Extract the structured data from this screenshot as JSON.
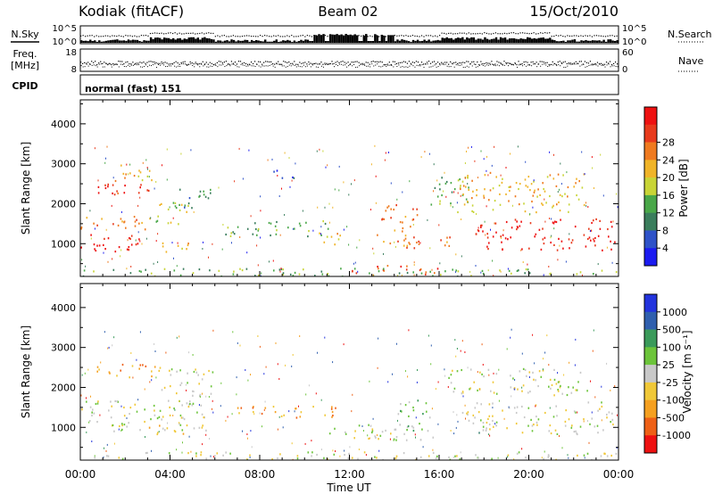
{
  "header": {
    "radar": "Kodiak (fitACF)",
    "beam": "Beam 02",
    "date": "15/Oct/2010"
  },
  "noise_panel": {
    "left_label": "N.Sky",
    "right_label": "N.Search",
    "left_ticks": [
      "10^5",
      "10^0"
    ],
    "right_ticks": [
      "10^5",
      "10^0"
    ]
  },
  "freq_panel": {
    "left_label_1": "Freq.",
    "left_label_2": "[MHz]",
    "right_label": "Nave",
    "left_ticks": [
      "18",
      "8"
    ],
    "right_ticks": [
      "60",
      "0"
    ]
  },
  "cpid_panel": {
    "label": "CPID",
    "value": "normal (fast) 151"
  },
  "chart_data": [
    {
      "type": "heatmap",
      "name": "power",
      "ylabel": "Slant Range [km]",
      "ylim": [
        180,
        4600
      ],
      "yticks": [
        "1000",
        "2000",
        "3000",
        "4000"
      ],
      "xlim": [
        0,
        24
      ],
      "colorbar_label": "Power [dB]",
      "colorbar_ticks": [
        "4",
        "8",
        "12",
        "16",
        "20",
        "24",
        "28"
      ],
      "colors": [
        "#1b1bf0",
        "#2e52c8",
        "#3a7d5c",
        "#49a748",
        "#c8d436",
        "#f0b428",
        "#ef7a1f",
        "#e83a1c",
        "#ee1111"
      ],
      "regions": [
        {
          "t0": 0.0,
          "t1": 2.6,
          "r0": 780,
          "r1": 1300,
          "level": 8
        },
        {
          "t0": 0.0,
          "t1": 3.0,
          "r0": 1300,
          "r1": 1700,
          "level": 6
        },
        {
          "t0": 0.4,
          "t1": 3.6,
          "r0": 2250,
          "r1": 2600,
          "level": 7
        },
        {
          "t0": 1.2,
          "t1": 3.2,
          "r0": 2600,
          "r1": 3000,
          "level": 5
        },
        {
          "t0": 3.0,
          "t1": 4.8,
          "r0": 1500,
          "r1": 2100,
          "level": 4
        },
        {
          "t0": 3.5,
          "t1": 4.8,
          "r0": 750,
          "r1": 1100,
          "level": 5
        },
        {
          "t0": 4.2,
          "t1": 5.8,
          "r0": 1900,
          "r1": 2500,
          "level": 2
        },
        {
          "t0": 6.4,
          "t1": 11.2,
          "r0": 1200,
          "r1": 1600,
          "level": 3
        },
        {
          "t0": 8.6,
          "t1": 9.6,
          "r0": 2600,
          "r1": 2900,
          "level": 1
        },
        {
          "t0": 10.6,
          "t1": 11.8,
          "r0": 900,
          "r1": 1300,
          "level": 5
        },
        {
          "t0": 12.0,
          "t1": 16.0,
          "r0": 250,
          "r1": 500,
          "level": 7
        },
        {
          "t0": 13.2,
          "t1": 15.0,
          "r0": 900,
          "r1": 2000,
          "level": 6
        },
        {
          "t0": 14.2,
          "t1": 16.6,
          "r0": 950,
          "r1": 1250,
          "level": 6
        },
        {
          "t0": 15.6,
          "t1": 17.4,
          "r0": 2000,
          "r1": 2800,
          "level": 3
        },
        {
          "t0": 16.8,
          "t1": 22.6,
          "r0": 1800,
          "r1": 2800,
          "level": 5
        },
        {
          "t0": 17.6,
          "t1": 24.0,
          "r0": 850,
          "r1": 1650,
          "level": 8
        },
        {
          "t0": 0.0,
          "t1": 24.0,
          "r0": 200,
          "r1": 400,
          "level": 3
        }
      ]
    },
    {
      "type": "heatmap",
      "name": "velocity",
      "ylabel": "Slant Range [km]",
      "ylim": [
        180,
        4600
      ],
      "yticks": [
        "1000",
        "2000",
        "3000",
        "4000"
      ],
      "xlim": [
        0,
        24
      ],
      "xlabel": "Time UT",
      "xticks": [
        "00:00",
        "04:00",
        "08:00",
        "12:00",
        "16:00",
        "20:00",
        "00:00"
      ],
      "colorbar_label": "Velocity [m s⁻¹]",
      "colorbar_ticks": [
        "1000",
        "500",
        "100",
        "25",
        "-25",
        "-100",
        "-500",
        "-1000"
      ],
      "colors": [
        "#2233dd",
        "#2f5fae",
        "#3a9a5a",
        "#6cc43a",
        "#c8c8c8",
        "#f0c838",
        "#f5a020",
        "#ee6016",
        "#ee1111"
      ],
      "regions": [
        {
          "t0": 0.0,
          "t1": 5.6,
          "r0": 850,
          "r1": 1700,
          "level": 4
        },
        {
          "t0": 0.4,
          "t1": 3.6,
          "r0": 2250,
          "r1": 2600,
          "level": 6
        },
        {
          "t0": 3.0,
          "t1": 4.8,
          "r0": 800,
          "r1": 1100,
          "level": 5
        },
        {
          "t0": 3.6,
          "t1": 6.0,
          "r0": 1800,
          "r1": 2500,
          "level": 4
        },
        {
          "t0": 6.4,
          "t1": 11.4,
          "r0": 1250,
          "r1": 1550,
          "level": 6
        },
        {
          "t0": 11.0,
          "t1": 15.8,
          "r0": 700,
          "r1": 1100,
          "level": 4
        },
        {
          "t0": 14.0,
          "t1": 15.6,
          "r0": 900,
          "r1": 1700,
          "level": 3
        },
        {
          "t0": 16.4,
          "t1": 22.6,
          "r0": 1800,
          "r1": 2500,
          "level": 4
        },
        {
          "t0": 17.0,
          "t1": 24.0,
          "r0": 850,
          "r1": 1650,
          "level": 4
        },
        {
          "t0": 0.0,
          "t1": 24.0,
          "r0": 200,
          "r1": 400,
          "level": 4
        }
      ]
    }
  ]
}
